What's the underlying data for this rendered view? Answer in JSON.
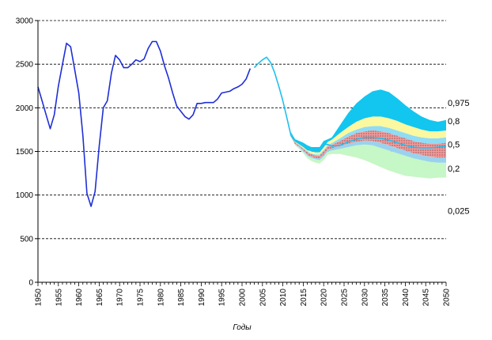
{
  "chart_data": {
    "type": "area",
    "xlabel": "Годы",
    "ylabel": "",
    "xlim": [
      1950,
      2050
    ],
    "ylim": [
      0,
      3000
    ],
    "yticks": [
      "0",
      "500",
      "1000",
      "1500",
      "2000",
      "2500",
      "3000"
    ],
    "xticks": [
      "1950",
      "1955",
      "1960",
      "1965",
      "1970",
      "1975",
      "1980",
      "1985",
      "1990",
      "1995",
      "2000",
      "2005",
      "2010",
      "2015",
      "2020",
      "2025",
      "2030",
      "2035",
      "2040",
      "2045",
      "2050"
    ],
    "grid": "horizontal dashed",
    "historical": {
      "color": "#1f2fd6",
      "x": [
        1950,
        1951,
        1952,
        1953,
        1954,
        1955,
        1956,
        1957,
        1958,
        1959,
        1960,
        1961,
        1962,
        1963,
        1964,
        1965,
        1966,
        1967,
        1968,
        1969,
        1970,
        1971,
        1972,
        1973,
        1974,
        1975,
        1976,
        1977,
        1978,
        1979,
        1980,
        1981,
        1982,
        1983,
        1984,
        1985,
        1986,
        1987,
        1988,
        1989,
        1990,
        1991,
        1992,
        1993,
        1994,
        1995,
        1996,
        1997,
        1998,
        1999,
        2000,
        2001,
        2002
      ],
      "y": [
        2240,
        2080,
        1920,
        1760,
        1920,
        2250,
        2500,
        2740,
        2700,
        2440,
        2170,
        1680,
        1020,
        870,
        1040,
        1560,
        2000,
        2080,
        2400,
        2600,
        2550,
        2460,
        2460,
        2500,
        2550,
        2530,
        2560,
        2680,
        2760,
        2760,
        2650,
        2480,
        2340,
        2170,
        2020,
        1960,
        1900,
        1870,
        1920,
        2050,
        2050,
        2060,
        2060,
        2060,
        2100,
        2170,
        2180,
        2190,
        2220,
        2240,
        2270,
        2330,
        2450
      ]
    },
    "projection_median": {
      "color": "#1ec0ee",
      "x": [
        2003,
        2004,
        2005,
        2006,
        2007,
        2008,
        2009,
        2010,
        2011,
        2012,
        2013,
        2014,
        2015,
        2016,
        2017,
        2018,
        2019,
        2020,
        2021,
        2022,
        2024,
        2026,
        2028,
        2030,
        2032,
        2034,
        2036,
        2038,
        2040,
        2042,
        2044,
        2046,
        2048,
        2050
      ],
      "y": [
        2460,
        2510,
        2550,
        2580,
        2520,
        2400,
        2250,
        2080,
        1880,
        1680,
        1620,
        1590,
        1560,
        1520,
        1510,
        1500,
        1520,
        1580,
        1580,
        1560,
        1570,
        1610,
        1640,
        1660,
        1660,
        1650,
        1630,
        1600,
        1570,
        1550,
        1540,
        1540,
        1550,
        1560
      ]
    },
    "quantile_labels": [
      "0,975",
      "0,8",
      "0,5",
      "0,2",
      "0,025"
    ],
    "quantile_x": [
      2012,
      2013,
      2014,
      2015,
      2016,
      2017,
      2018,
      2019,
      2020,
      2021,
      2022,
      2024,
      2026,
      2028,
      2030,
      2032,
      2034,
      2036,
      2038,
      2040,
      2042,
      2044,
      2046,
      2048,
      2050
    ],
    "quantiles": {
      "q025": [
        1660,
        1570,
        1530,
        1480,
        1420,
        1390,
        1370,
        1360,
        1400,
        1460,
        1470,
        1470,
        1450,
        1430,
        1400,
        1360,
        1320,
        1280,
        1250,
        1220,
        1210,
        1200,
        1190,
        1200,
        1200
      ],
      "q10": [
        1670,
        1580,
        1545,
        1500,
        1450,
        1425,
        1410,
        1400,
        1440,
        1500,
        1510,
        1530,
        1550,
        1570,
        1580,
        1570,
        1540,
        1510,
        1480,
        1450,
        1420,
        1400,
        1380,
        1370,
        1370
      ],
      "q20": [
        1675,
        1585,
        1555,
        1510,
        1465,
        1440,
        1425,
        1420,
        1460,
        1520,
        1535,
        1560,
        1590,
        1610,
        1625,
        1620,
        1600,
        1570,
        1540,
        1510,
        1480,
        1460,
        1440,
        1430,
        1430
      ],
      "q50": [
        1685,
        1600,
        1570,
        1530,
        1490,
        1465,
        1455,
        1450,
        1500,
        1560,
        1575,
        1620,
        1670,
        1710,
        1730,
        1740,
        1730,
        1710,
        1680,
        1650,
        1620,
        1600,
        1590,
        1590,
        1600
      ],
      "q60": [
        1690,
        1605,
        1575,
        1540,
        1500,
        1475,
        1465,
        1465,
        1515,
        1575,
        1595,
        1650,
        1710,
        1750,
        1780,
        1790,
        1790,
        1770,
        1740,
        1710,
        1680,
        1660,
        1650,
        1650,
        1660
      ],
      "q80": [
        1700,
        1615,
        1590,
        1555,
        1520,
        1500,
        1490,
        1490,
        1545,
        1610,
        1635,
        1710,
        1780,
        1840,
        1880,
        1900,
        1900,
        1880,
        1850,
        1810,
        1780,
        1750,
        1730,
        1730,
        1740
      ],
      "q975": [
        1720,
        1640,
        1620,
        1600,
        1570,
        1550,
        1550,
        1550,
        1620,
        1640,
        1660,
        1800,
        1940,
        2050,
        2130,
        2190,
        2210,
        2180,
        2110,
        2030,
        1960,
        1900,
        1860,
        1840,
        1860
      ]
    },
    "band_colors": {
      "q80_q975": "#12c6ef",
      "q60_q80": "#fbf89f",
      "q50_q60": "#8fdcf5",
      "q20_q50": "#f29c9c",
      "q10_q20": "#9ad2ee",
      "q025_q10": "#c6f7c6"
    }
  }
}
